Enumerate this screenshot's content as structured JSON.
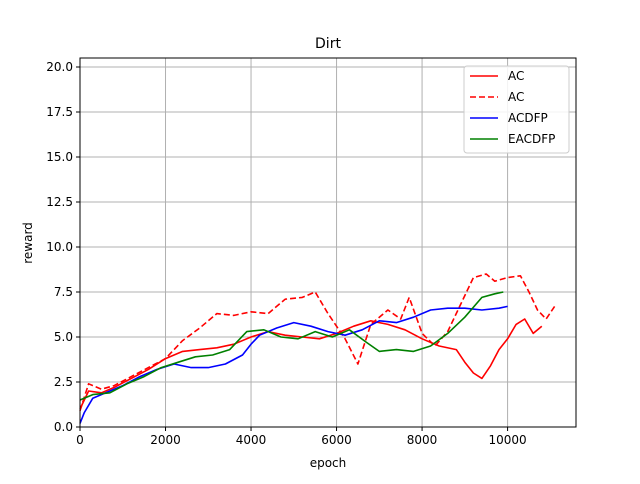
{
  "chart_data": {
    "type": "line",
    "title": "Dirt",
    "xlabel": "epoch",
    "ylabel": "reward",
    "xlim": [
      0,
      11600
    ],
    "ylim": [
      0,
      20.5
    ],
    "x_ticks": [
      0,
      2000,
      4000,
      6000,
      8000,
      10000
    ],
    "x_tick_labels": [
      "0",
      "2000",
      "4000",
      "6000",
      "8000",
      "10000"
    ],
    "y_ticks": [
      0,
      2.5,
      5,
      7.5,
      10,
      12.5,
      15,
      17.5,
      20
    ],
    "y_tick_labels": [
      "0.0",
      "2.5",
      "5.0",
      "7.5",
      "10.0",
      "12.5",
      "15.0",
      "17.5",
      "20.0"
    ],
    "grid": true,
    "legend_position": "top-right",
    "series": [
      {
        "name": "AC",
        "color": "#ff0000",
        "style": "solid",
        "points": [
          [
            0,
            1.0
          ],
          [
            200,
            2.0
          ],
          [
            500,
            1.9
          ],
          [
            800,
            2.2
          ],
          [
            1200,
            2.7
          ],
          [
            1600,
            3.2
          ],
          [
            2000,
            3.8
          ],
          [
            2400,
            4.2
          ],
          [
            2800,
            4.3
          ],
          [
            3200,
            4.4
          ],
          [
            3600,
            4.6
          ],
          [
            4000,
            5.0
          ],
          [
            4400,
            5.3
          ],
          [
            4800,
            5.1
          ],
          [
            5200,
            5.0
          ],
          [
            5600,
            4.9
          ],
          [
            6000,
            5.2
          ],
          [
            6400,
            5.6
          ],
          [
            6800,
            5.9
          ],
          [
            7200,
            5.7
          ],
          [
            7600,
            5.4
          ],
          [
            8000,
            4.9
          ],
          [
            8400,
            4.5
          ],
          [
            8800,
            4.3
          ],
          [
            9000,
            3.6
          ],
          [
            9200,
            3.0
          ],
          [
            9400,
            2.7
          ],
          [
            9600,
            3.4
          ],
          [
            9800,
            4.3
          ],
          [
            10000,
            4.9
          ],
          [
            10200,
            5.7
          ],
          [
            10400,
            6.0
          ],
          [
            10600,
            5.2
          ],
          [
            10800,
            5.6
          ]
        ]
      },
      {
        "name": "AC",
        "color": "#ff0000",
        "style": "dashed",
        "points": [
          [
            0,
            0.9
          ],
          [
            200,
            2.4
          ],
          [
            500,
            2.1
          ],
          [
            800,
            2.3
          ],
          [
            1200,
            2.8
          ],
          [
            1600,
            3.3
          ],
          [
            2000,
            3.8
          ],
          [
            2400,
            4.8
          ],
          [
            2800,
            5.5
          ],
          [
            3200,
            6.3
          ],
          [
            3600,
            6.2
          ],
          [
            4000,
            6.4
          ],
          [
            4400,
            6.3
          ],
          [
            4800,
            7.1
          ],
          [
            5200,
            7.2
          ],
          [
            5500,
            7.5
          ],
          [
            5800,
            6.3
          ],
          [
            6200,
            4.9
          ],
          [
            6500,
            3.5
          ],
          [
            6800,
            5.7
          ],
          [
            7200,
            6.5
          ],
          [
            7500,
            6.0
          ],
          [
            7700,
            7.2
          ],
          [
            8000,
            5.2
          ],
          [
            8300,
            4.5
          ],
          [
            8600,
            5.3
          ],
          [
            9000,
            7.3
          ],
          [
            9200,
            8.3
          ],
          [
            9500,
            8.5
          ],
          [
            9700,
            8.1
          ],
          [
            10000,
            8.3
          ],
          [
            10300,
            8.4
          ],
          [
            10500,
            7.5
          ],
          [
            10700,
            6.5
          ],
          [
            10900,
            6.0
          ],
          [
            11100,
            6.7
          ]
        ]
      },
      {
        "name": "ACDFP",
        "color": "#0000ff",
        "style": "solid",
        "points": [
          [
            0,
            0.2
          ],
          [
            100,
            0.8
          ],
          [
            300,
            1.6
          ],
          [
            600,
            1.9
          ],
          [
            1000,
            2.3
          ],
          [
            1400,
            2.8
          ],
          [
            1800,
            3.2
          ],
          [
            2200,
            3.5
          ],
          [
            2600,
            3.3
          ],
          [
            3000,
            3.3
          ],
          [
            3400,
            3.5
          ],
          [
            3800,
            4.0
          ],
          [
            4000,
            4.6
          ],
          [
            4200,
            5.1
          ],
          [
            4600,
            5.5
          ],
          [
            5000,
            5.8
          ],
          [
            5400,
            5.6
          ],
          [
            5800,
            5.3
          ],
          [
            6200,
            5.1
          ],
          [
            6600,
            5.4
          ],
          [
            7000,
            5.9
          ],
          [
            7400,
            5.8
          ],
          [
            7800,
            6.1
          ],
          [
            8200,
            6.5
          ],
          [
            8600,
            6.6
          ],
          [
            9000,
            6.6
          ],
          [
            9400,
            6.5
          ],
          [
            9800,
            6.6
          ],
          [
            10000,
            6.7
          ]
        ]
      },
      {
        "name": "EACDFP",
        "color": "#008000",
        "style": "solid",
        "points": [
          [
            0,
            1.5
          ],
          [
            300,
            1.8
          ],
          [
            700,
            1.9
          ],
          [
            1100,
            2.4
          ],
          [
            1500,
            2.8
          ],
          [
            1900,
            3.3
          ],
          [
            2300,
            3.6
          ],
          [
            2700,
            3.9
          ],
          [
            3100,
            4.0
          ],
          [
            3500,
            4.3
          ],
          [
            3900,
            5.3
          ],
          [
            4300,
            5.4
          ],
          [
            4700,
            5.0
          ],
          [
            5100,
            4.9
          ],
          [
            5500,
            5.3
          ],
          [
            5900,
            5.0
          ],
          [
            6300,
            5.4
          ],
          [
            6700,
            4.7
          ],
          [
            7000,
            4.2
          ],
          [
            7400,
            4.3
          ],
          [
            7800,
            4.2
          ],
          [
            8200,
            4.5
          ],
          [
            8600,
            5.2
          ],
          [
            9000,
            6.1
          ],
          [
            9400,
            7.2
          ],
          [
            9700,
            7.4
          ],
          [
            9900,
            7.5
          ]
        ]
      }
    ]
  }
}
